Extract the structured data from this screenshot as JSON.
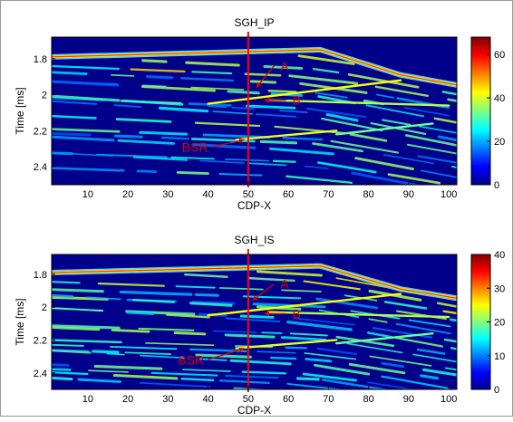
{
  "chart_data": [
    {
      "type": "heatmap",
      "title": "SGH_IP",
      "xlabel": "CDP-X",
      "ylabel": "Time [ms]",
      "xlim": [
        1,
        102
      ],
      "ylim": [
        2.5,
        1.68
      ],
      "x_ticks": [
        "10",
        "20",
        "30",
        "40",
        "50",
        "60",
        "70",
        "80",
        "90",
        "100"
      ],
      "y_ticks": [
        "1.8",
        "2",
        "2.2",
        "2.4"
      ],
      "colorbar": {
        "min": 0,
        "max": 68,
        "ticks": [
          "0",
          "20",
          "40",
          "60"
        ],
        "colormap": "jet"
      },
      "vertical_line_x": 50,
      "annotations": [
        {
          "text": "A",
          "x": 58,
          "y": 1.84,
          "arrow_to_x": 52,
          "arrow_to_y": 1.96
        },
        {
          "text": "B",
          "x": 61,
          "y": 2.03,
          "arrow_to_x": 54,
          "arrow_to_y": 2.03
        },
        {
          "text": "BSR",
          "x": 40,
          "y": 2.29,
          "arrow_to_x": 49,
          "arrow_to_y": 2.25
        }
      ]
    },
    {
      "type": "heatmap",
      "title": "SGH_IS",
      "xlabel": "CDP-X",
      "ylabel": "Time [ms]",
      "xlim": [
        1,
        102
      ],
      "ylim": [
        2.5,
        1.68
      ],
      "x_ticks": [
        "10",
        "20",
        "30",
        "40",
        "50",
        "60",
        "70",
        "80",
        "90",
        "100"
      ],
      "y_ticks": [
        "1.8",
        "2",
        "2.2",
        "2.4"
      ],
      "colorbar": {
        "min": 0,
        "max": 40,
        "ticks": [
          "0",
          "10",
          "20",
          "30",
          "40"
        ],
        "colormap": "jet"
      },
      "vertical_line_x": 50,
      "annotations": [
        {
          "text": "A",
          "x": 58,
          "y": 1.86,
          "arrow_to_x": 51,
          "arrow_to_y": 1.96
        },
        {
          "text": "B",
          "x": 61,
          "y": 2.04,
          "arrow_to_x": 54,
          "arrow_to_y": 2.04
        },
        {
          "text": "BSR",
          "x": 39,
          "y": 2.32,
          "arrow_to_x": 49,
          "arrow_to_y": 2.25
        }
      ]
    }
  ]
}
